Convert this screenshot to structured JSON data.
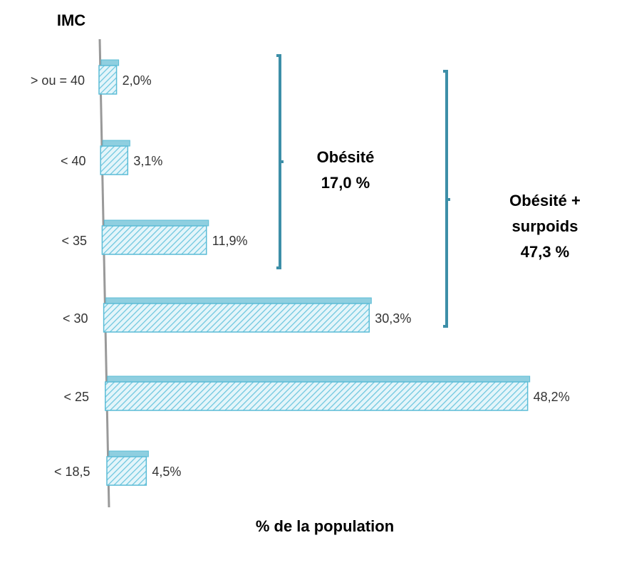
{
  "chart_data": {
    "type": "bar",
    "orientation": "horizontal",
    "title": "IMC",
    "x_label": "% de la population",
    "categories": [
      "> ou = 40",
      "< 40",
      "< 35",
      "< 30",
      "< 25",
      "< 18,5"
    ],
    "values": [
      2.0,
      3.1,
      11.9,
      30.3,
      48.2,
      4.5
    ],
    "value_labels": [
      "2,0%",
      "3,1%",
      "11,9%",
      "30,3%",
      "48,2%",
      "4,5%"
    ],
    "color": "#5bbcd6",
    "xlim": [
      0,
      50
    ],
    "annotations": [
      {
        "lines": [
          "Obésité",
          "17,0 %"
        ]
      },
      {
        "lines": [
          "Obésité +",
          "surpoids",
          "47,3 %"
        ]
      }
    ]
  }
}
